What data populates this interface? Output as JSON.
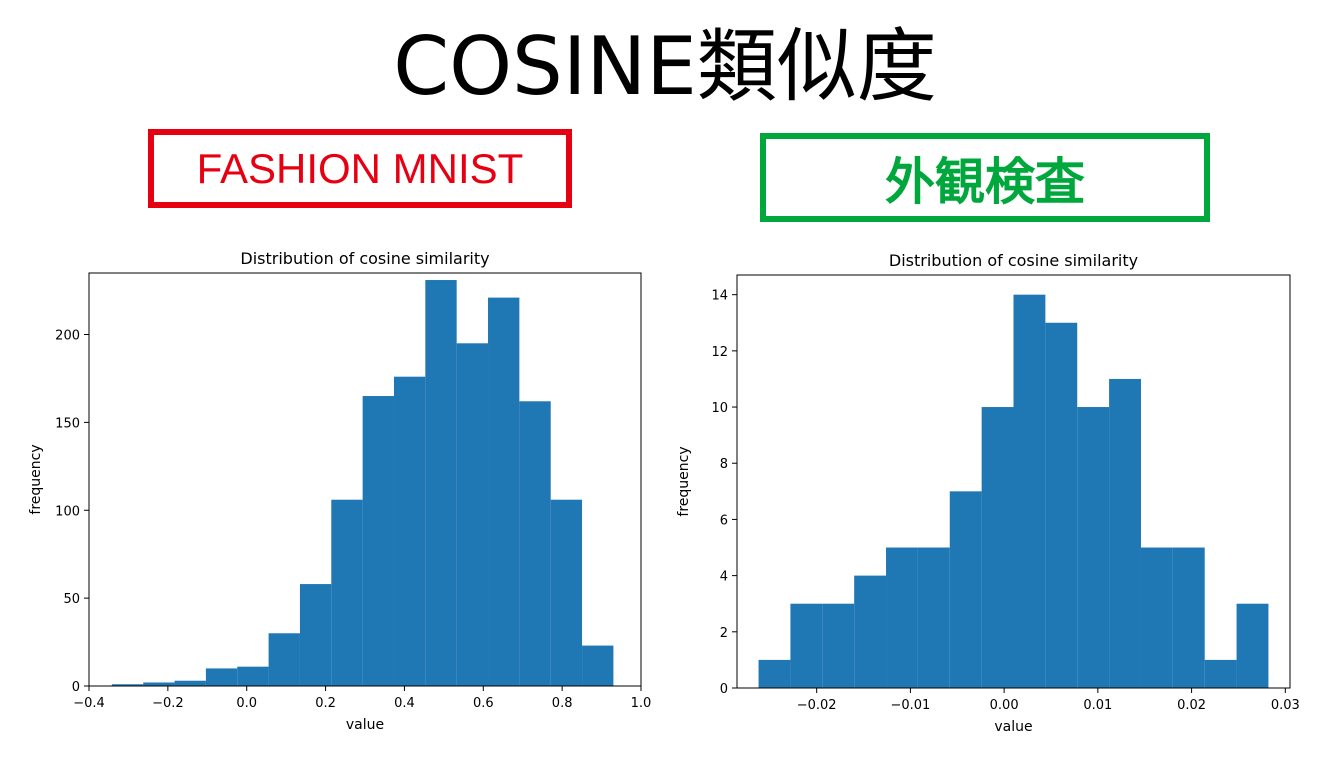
{
  "title": "COSINE類似度",
  "left_label": "FASHION MNIST",
  "right_label": "外観検査",
  "colors": {
    "bar": "#1f77b4",
    "left_label": "#e60012",
    "right_label": "#00a73c"
  },
  "chart_data": [
    {
      "type": "bar",
      "title": "Distribution of cosine similarity",
      "xlabel": "value",
      "ylabel": "frequency",
      "xlim": [
        -0.4,
        1.0
      ],
      "ylim": [
        0,
        235
      ],
      "xticks": [
        -0.4,
        -0.2,
        0.0,
        0.2,
        0.4,
        0.6,
        0.8,
        1.0
      ],
      "xtick_labels": [
        "−0.4",
        "−0.2",
        "0.0",
        "0.2",
        "0.4",
        "0.6",
        "0.8",
        "1.0"
      ],
      "yticks": [
        0,
        50,
        100,
        150,
        200
      ],
      "ytick_labels": [
        "0",
        "50",
        "100",
        "150",
        "200"
      ],
      "bin_edges": [
        -0.342,
        -0.2625,
        -0.183,
        -0.1035,
        -0.024,
        0.0555,
        0.135,
        0.2145,
        0.294,
        0.3735,
        0.453,
        0.5325,
        0.612,
        0.6915,
        0.771,
        0.8505,
        0.93
      ],
      "values": [
        1,
        2,
        3,
        10,
        11,
        30,
        58,
        106,
        165,
        176,
        231,
        195,
        221,
        162,
        106,
        23
      ]
    },
    {
      "type": "bar",
      "title": "Distribution of cosine similarity",
      "xlabel": "value",
      "ylabel": "frequency",
      "xlim": [
        -0.0285,
        0.0305
      ],
      "ylim": [
        0,
        14.7
      ],
      "xticks": [
        -0.02,
        -0.01,
        0.0,
        0.01,
        0.02,
        0.03
      ],
      "xtick_labels": [
        "−0.02",
        "−0.01",
        "0.00",
        "0.01",
        "0.02",
        "0.03"
      ],
      "yticks": [
        0,
        2,
        4,
        6,
        8,
        10,
        12,
        14
      ],
      "ytick_labels": [
        "0",
        "2",
        "4",
        "6",
        "8",
        "10",
        "12",
        "14"
      ],
      "bin_edges": [
        -0.0262,
        -0.0228,
        -0.0194,
        -0.016,
        -0.0126,
        -0.0092,
        -0.0058,
        -0.0024,
        0.001,
        0.0044,
        0.0078,
        0.0112,
        0.0146,
        0.018,
        0.0214,
        0.0248,
        0.0282
      ],
      "values": [
        1,
        3,
        3,
        4,
        5,
        5,
        7,
        10,
        14,
        13,
        10,
        11,
        5,
        5,
        1,
        3
      ]
    }
  ]
}
